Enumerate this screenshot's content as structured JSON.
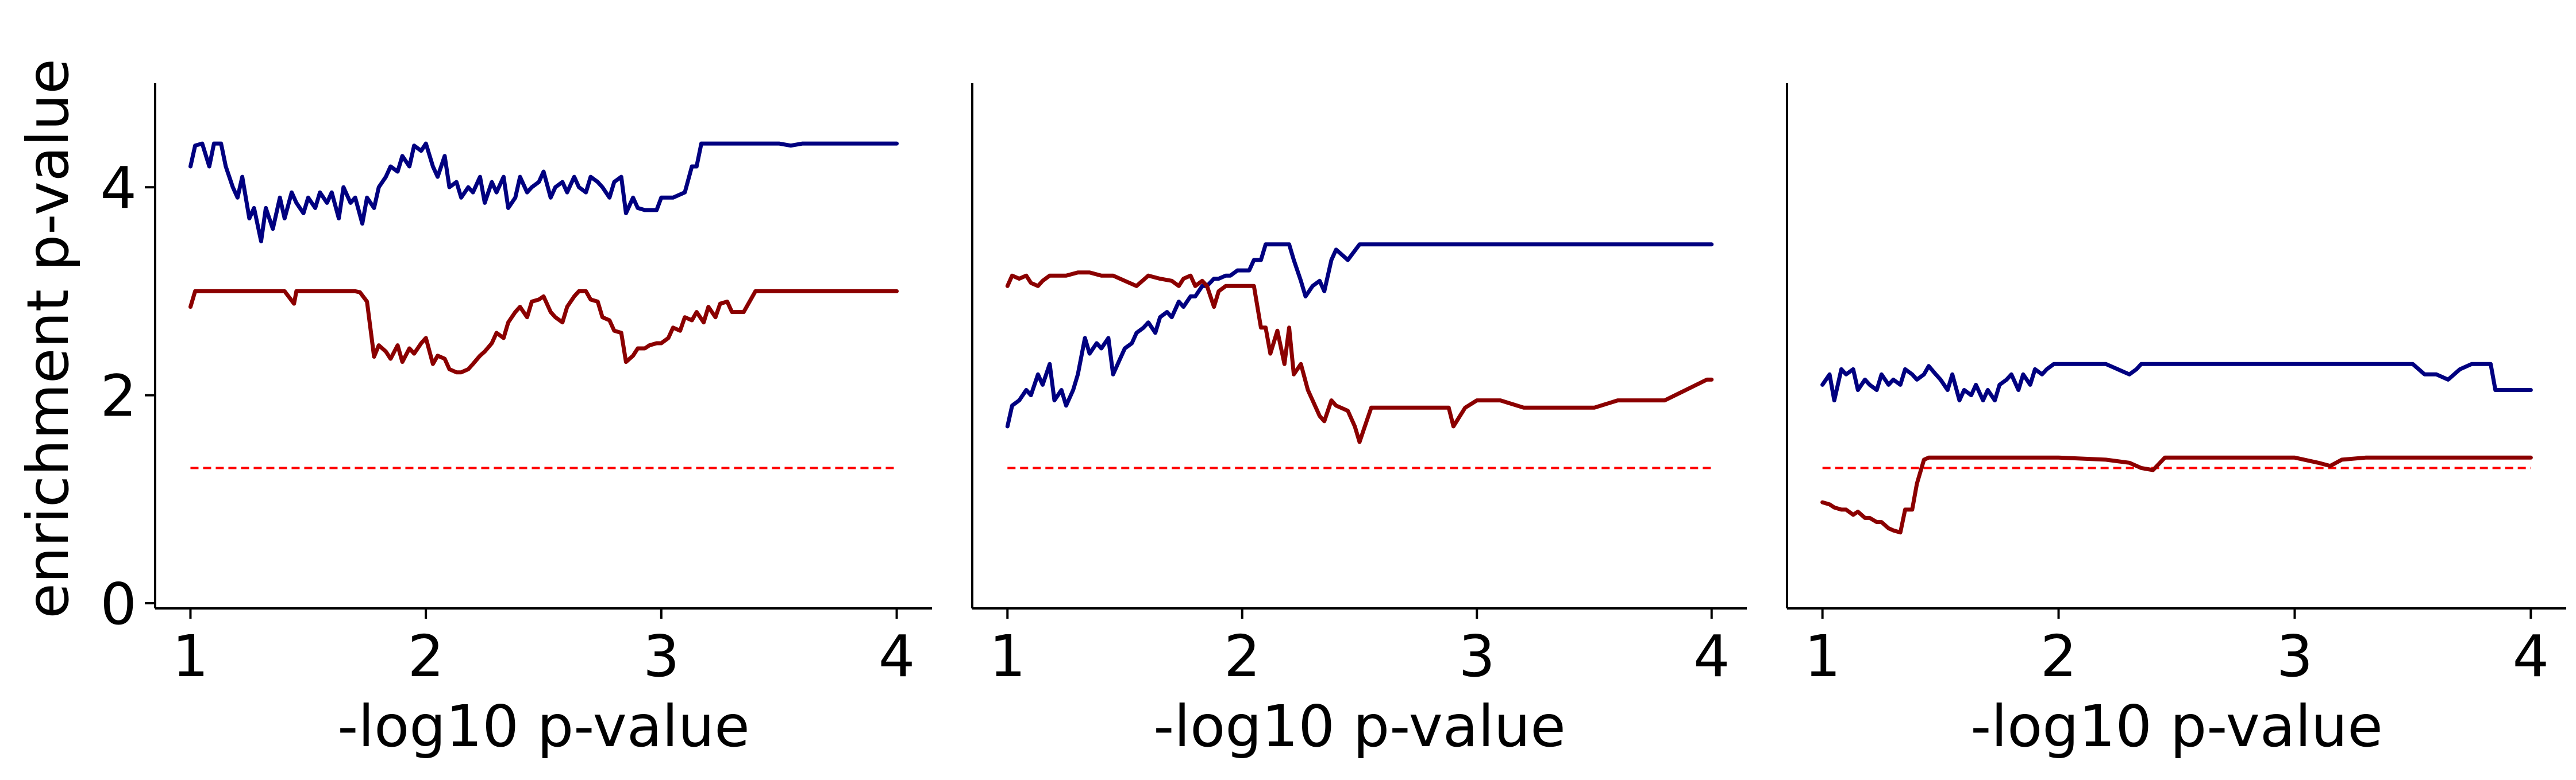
{
  "figure": {
    "ylabel": "enrichment p-value"
  },
  "colors": {
    "blue": "#000080",
    "red": "#8b0000",
    "threshold": "#ff0000"
  },
  "chart_data": [
    {
      "type": "line",
      "xlabel": "-log10 p-value",
      "ylabel": "enrichment p-value",
      "xlim": [
        0.85,
        4.15
      ],
      "ylim": [
        -0.05,
        5.0
      ],
      "xticks": [
        1,
        2,
        3,
        4
      ],
      "yticks": [
        0,
        2,
        4
      ],
      "grid": false,
      "legend": "none",
      "threshold": 1.3,
      "series": [
        {
          "color": "#000080",
          "x": [
            1.0,
            1.02,
            1.05,
            1.08,
            1.1,
            1.13,
            1.15,
            1.18,
            1.2,
            1.22,
            1.25,
            1.27,
            1.3,
            1.32,
            1.35,
            1.38,
            1.4,
            1.43,
            1.45,
            1.48,
            1.5,
            1.53,
            1.55,
            1.58,
            1.6,
            1.63,
            1.65,
            1.68,
            1.7,
            1.73,
            1.75,
            1.78,
            1.8,
            1.83,
            1.85,
            1.88,
            1.9,
            1.93,
            1.95,
            1.98,
            2.0,
            2.03,
            2.05,
            2.08,
            2.1,
            2.13,
            2.15,
            2.18,
            2.2,
            2.23,
            2.25,
            2.28,
            2.3,
            2.33,
            2.35,
            2.38,
            2.4,
            2.43,
            2.45,
            2.48,
            2.5,
            2.53,
            2.55,
            2.58,
            2.6,
            2.63,
            2.65,
            2.68,
            2.7,
            2.73,
            2.75,
            2.78,
            2.8,
            2.83,
            2.85,
            2.88,
            2.9,
            2.93,
            2.95,
            2.98,
            3.0,
            3.05,
            3.1,
            3.13,
            3.15,
            3.17,
            3.2,
            3.4,
            3.5,
            3.55,
            3.6,
            4.0
          ],
          "y": [
            4.2,
            4.4,
            4.42,
            4.2,
            4.42,
            4.42,
            4.2,
            4.0,
            3.9,
            4.1,
            3.7,
            3.8,
            3.48,
            3.8,
            3.6,
            3.9,
            3.7,
            3.95,
            3.85,
            3.75,
            3.9,
            3.8,
            3.95,
            3.85,
            3.95,
            3.7,
            4.0,
            3.85,
            3.9,
            3.65,
            3.9,
            3.8,
            4.0,
            4.1,
            4.2,
            4.15,
            4.3,
            4.2,
            4.4,
            4.35,
            4.42,
            4.2,
            4.1,
            4.3,
            4.0,
            4.05,
            3.9,
            4.0,
            3.95,
            4.1,
            3.85,
            4.05,
            3.95,
            4.1,
            3.8,
            3.9,
            4.1,
            3.95,
            4.0,
            4.05,
            4.15,
            3.9,
            4.0,
            4.05,
            3.95,
            4.1,
            4.0,
            3.95,
            4.1,
            4.05,
            4.0,
            3.9,
            4.05,
            4.1,
            3.75,
            3.9,
            3.8,
            3.78,
            3.78,
            3.78,
            3.9,
            3.9,
            3.95,
            4.2,
            4.2,
            4.42,
            4.42,
            4.42,
            4.42,
            4.4,
            4.42,
            4.42
          ]
        },
        {
          "color": "#8b0000",
          "x": [
            1.0,
            1.02,
            1.05,
            1.1,
            1.2,
            1.3,
            1.4,
            1.44,
            1.45,
            1.47,
            1.5,
            1.6,
            1.7,
            1.72,
            1.75,
            1.78,
            1.8,
            1.83,
            1.85,
            1.88,
            1.9,
            1.93,
            1.95,
            1.98,
            2.0,
            2.03,
            2.05,
            2.08,
            2.1,
            2.13,
            2.15,
            2.18,
            2.2,
            2.23,
            2.25,
            2.28,
            2.3,
            2.33,
            2.35,
            2.38,
            2.4,
            2.43,
            2.45,
            2.48,
            2.5,
            2.53,
            2.55,
            2.58,
            2.6,
            2.63,
            2.65,
            2.68,
            2.7,
            2.73,
            2.75,
            2.78,
            2.8,
            2.83,
            2.85,
            2.88,
            2.9,
            2.93,
            2.95,
            2.98,
            3.0,
            3.03,
            3.05,
            3.08,
            3.1,
            3.13,
            3.15,
            3.18,
            3.2,
            3.23,
            3.25,
            3.28,
            3.3,
            3.35,
            3.4,
            3.45,
            3.5,
            3.6,
            3.8,
            4.0
          ],
          "y": [
            2.85,
            3.0,
            3.0,
            3.0,
            3.0,
            3.0,
            3.0,
            2.88,
            3.0,
            3.0,
            3.0,
            3.0,
            3.0,
            2.99,
            2.9,
            2.37,
            2.48,
            2.42,
            2.35,
            2.48,
            2.32,
            2.45,
            2.4,
            2.5,
            2.55,
            2.3,
            2.38,
            2.35,
            2.25,
            2.22,
            2.22,
            2.25,
            2.3,
            2.38,
            2.42,
            2.5,
            2.6,
            2.55,
            2.7,
            2.8,
            2.85,
            2.75,
            2.9,
            2.92,
            2.95,
            2.8,
            2.75,
            2.7,
            2.85,
            2.95,
            3.0,
            3.0,
            2.92,
            2.9,
            2.75,
            2.72,
            2.62,
            2.6,
            2.32,
            2.38,
            2.45,
            2.45,
            2.48,
            2.5,
            2.5,
            2.55,
            2.65,
            2.62,
            2.75,
            2.72,
            2.8,
            2.7,
            2.85,
            2.75,
            2.88,
            2.9,
            2.8,
            2.8,
            3.0,
            3.0,
            3.0,
            3.0,
            3.0,
            3.0
          ]
        }
      ]
    },
    {
      "type": "line",
      "xlabel": "-log10 p-value",
      "ylabel": "",
      "xlim": [
        0.85,
        4.15
      ],
      "ylim": [
        -0.05,
        5.0
      ],
      "xticks": [
        1,
        2,
        3,
        4
      ],
      "yticks": [],
      "grid": false,
      "legend": "none",
      "threshold": 1.3,
      "series": [
        {
          "color": "#000080",
          "x": [
            1.0,
            1.02,
            1.05,
            1.08,
            1.1,
            1.13,
            1.15,
            1.18,
            1.2,
            1.23,
            1.25,
            1.28,
            1.3,
            1.33,
            1.35,
            1.38,
            1.4,
            1.43,
            1.45,
            1.48,
            1.5,
            1.53,
            1.55,
            1.58,
            1.6,
            1.63,
            1.65,
            1.68,
            1.7,
            1.73,
            1.75,
            1.78,
            1.8,
            1.83,
            1.85,
            1.88,
            1.9,
            1.93,
            1.95,
            1.98,
            2.0,
            2.03,
            2.05,
            2.08,
            2.1,
            2.15,
            2.2,
            2.22,
            2.25,
            2.27,
            2.3,
            2.33,
            2.35,
            2.38,
            2.4,
            2.45,
            2.5,
            2.55,
            3.0,
            3.5,
            4.0
          ],
          "y": [
            1.7,
            1.9,
            1.95,
            2.05,
            2.0,
            2.2,
            2.1,
            2.3,
            1.95,
            2.05,
            1.9,
            2.05,
            2.2,
            2.55,
            2.4,
            2.5,
            2.45,
            2.55,
            2.2,
            2.35,
            2.45,
            2.5,
            2.6,
            2.65,
            2.7,
            2.6,
            2.75,
            2.8,
            2.75,
            2.9,
            2.85,
            2.95,
            2.95,
            3.05,
            3.05,
            3.12,
            3.12,
            3.15,
            3.15,
            3.2,
            3.2,
            3.2,
            3.3,
            3.3,
            3.45,
            3.45,
            3.45,
            3.3,
            3.1,
            2.95,
            3.05,
            3.1,
            3.0,
            3.3,
            3.4,
            3.3,
            3.45,
            3.45,
            3.45,
            3.45,
            3.45
          ]
        },
        {
          "color": "#8b0000",
          "x": [
            1.0,
            1.02,
            1.05,
            1.08,
            1.1,
            1.13,
            1.15,
            1.18,
            1.2,
            1.25,
            1.3,
            1.35,
            1.4,
            1.45,
            1.5,
            1.55,
            1.6,
            1.65,
            1.7,
            1.73,
            1.75,
            1.78,
            1.8,
            1.83,
            1.85,
            1.88,
            1.9,
            1.93,
            1.95,
            1.98,
            2.0,
            2.05,
            2.08,
            2.1,
            2.12,
            2.15,
            2.18,
            2.2,
            2.22,
            2.25,
            2.28,
            2.3,
            2.33,
            2.35,
            2.38,
            2.4,
            2.45,
            2.48,
            2.5,
            2.53,
            2.55,
            2.6,
            2.7,
            2.8,
            2.88,
            2.9,
            2.95,
            3.0,
            3.1,
            3.2,
            3.5,
            3.6,
            3.8,
            3.98,
            4.0
          ],
          "y": [
            3.05,
            3.15,
            3.12,
            3.15,
            3.08,
            3.05,
            3.1,
            3.15,
            3.15,
            3.15,
            3.18,
            3.18,
            3.15,
            3.15,
            3.1,
            3.05,
            3.15,
            3.12,
            3.1,
            3.05,
            3.12,
            3.15,
            3.05,
            3.1,
            3.05,
            2.85,
            3.0,
            3.05,
            3.05,
            3.05,
            3.05,
            3.05,
            2.65,
            2.65,
            2.4,
            2.62,
            2.3,
            2.65,
            2.2,
            2.3,
            2.05,
            1.95,
            1.8,
            1.75,
            1.95,
            1.9,
            1.85,
            1.7,
            1.55,
            1.75,
            1.88,
            1.88,
            1.88,
            1.88,
            1.88,
            1.7,
            1.88,
            1.95,
            1.95,
            1.88,
            1.88,
            1.95,
            1.95,
            2.15,
            2.15
          ]
        }
      ]
    },
    {
      "type": "line",
      "xlabel": "-log10 p-value",
      "ylabel": "",
      "xlim": [
        0.85,
        4.15
      ],
      "ylim": [
        -0.05,
        5.0
      ],
      "xticks": [
        1,
        2,
        3,
        4
      ],
      "yticks": [],
      "grid": false,
      "legend": "none",
      "threshold": 1.3,
      "series": [
        {
          "color": "#000080",
          "x": [
            1.0,
            1.03,
            1.05,
            1.08,
            1.1,
            1.13,
            1.15,
            1.18,
            1.2,
            1.23,
            1.25,
            1.28,
            1.3,
            1.33,
            1.35,
            1.38,
            1.4,
            1.43,
            1.45,
            1.48,
            1.5,
            1.53,
            1.55,
            1.58,
            1.6,
            1.63,
            1.65,
            1.68,
            1.7,
            1.73,
            1.75,
            1.78,
            1.8,
            1.83,
            1.85,
            1.88,
            1.9,
            1.93,
            1.95,
            1.98,
            2.0,
            2.05,
            2.1,
            2.2,
            2.3,
            2.33,
            2.35,
            2.4,
            2.5,
            2.7,
            2.9,
            3.0,
            3.1,
            3.2,
            3.3,
            3.4,
            3.5,
            3.55,
            3.6,
            3.65,
            3.7,
            3.75,
            3.8,
            3.83,
            3.85,
            4.0
          ],
          "y": [
            2.1,
            2.2,
            1.95,
            2.25,
            2.2,
            2.25,
            2.05,
            2.15,
            2.1,
            2.05,
            2.2,
            2.1,
            2.15,
            2.1,
            2.25,
            2.2,
            2.15,
            2.2,
            2.28,
            2.2,
            2.15,
            2.05,
            2.2,
            1.95,
            2.05,
            2.0,
            2.1,
            1.95,
            2.05,
            1.95,
            2.1,
            2.15,
            2.2,
            2.05,
            2.2,
            2.1,
            2.25,
            2.2,
            2.25,
            2.3,
            2.3,
            2.3,
            2.3,
            2.3,
            2.2,
            2.25,
            2.3,
            2.3,
            2.3,
            2.3,
            2.3,
            2.3,
            2.3,
            2.3,
            2.3,
            2.3,
            2.3,
            2.2,
            2.2,
            2.15,
            2.25,
            2.3,
            2.3,
            2.3,
            2.05,
            2.05
          ]
        },
        {
          "color": "#8b0000",
          "x": [
            1.0,
            1.03,
            1.05,
            1.08,
            1.1,
            1.13,
            1.15,
            1.18,
            1.2,
            1.23,
            1.25,
            1.28,
            1.3,
            1.33,
            1.35,
            1.38,
            1.4,
            1.43,
            1.45,
            1.5,
            1.6,
            1.8,
            2.0,
            2.2,
            2.3,
            2.35,
            2.4,
            2.45,
            2.5,
            2.6,
            2.8,
            3.0,
            3.1,
            3.15,
            3.2,
            3.3,
            3.5,
            3.8,
            4.0
          ],
          "y": [
            0.97,
            0.95,
            0.92,
            0.9,
            0.9,
            0.85,
            0.88,
            0.82,
            0.82,
            0.78,
            0.78,
            0.72,
            0.7,
            0.68,
            0.9,
            0.9,
            1.15,
            1.38,
            1.4,
            1.4,
            1.4,
            1.4,
            1.4,
            1.38,
            1.35,
            1.3,
            1.28,
            1.4,
            1.4,
            1.4,
            1.4,
            1.4,
            1.35,
            1.32,
            1.38,
            1.4,
            1.4,
            1.4,
            1.4
          ]
        }
      ]
    }
  ]
}
